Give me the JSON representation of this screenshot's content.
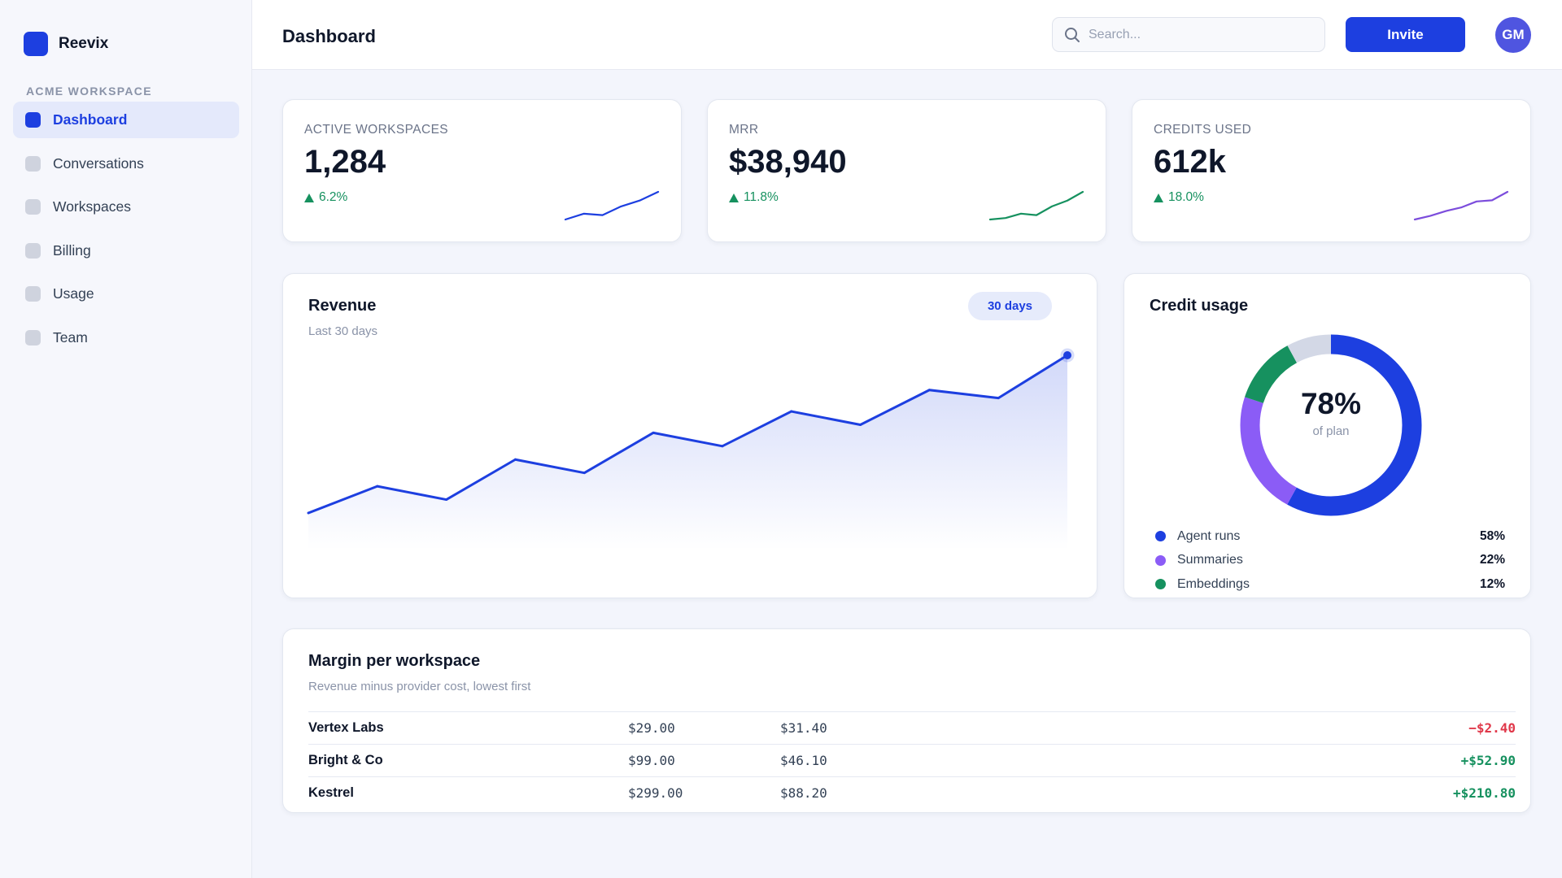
{
  "app": {
    "name": "Reevix"
  },
  "sidebar": {
    "workspace_label": "ACME WORKSPACE",
    "items": [
      {
        "label": "Dashboard",
        "active": true
      },
      {
        "label": "Conversations",
        "active": false
      },
      {
        "label": "Workspaces",
        "active": false
      },
      {
        "label": "Billing",
        "active": false
      },
      {
        "label": "Usage",
        "active": false
      },
      {
        "label": "Team",
        "active": false
      }
    ]
  },
  "header": {
    "title": "Dashboard",
    "search_placeholder": "Search...",
    "invite_label": "Invite",
    "avatar_initials": "GM"
  },
  "kpis": [
    {
      "label": "ACTIVE WORKSPACES",
      "value": "1,284",
      "delta": "6.2%",
      "color": "#1d3fe0",
      "spark": [
        10,
        14,
        13,
        19,
        23,
        29
      ]
    },
    {
      "label": "MRR",
      "value": "$38,940",
      "delta": "11.8%",
      "color": "#16915f",
      "spark": [
        12,
        13,
        16,
        15,
        21,
        25,
        31
      ]
    },
    {
      "label": "CREDITS USED",
      "value": "612k",
      "delta": "18.0%",
      "color": "#7c4ddc",
      "spark": [
        8,
        11,
        15,
        18,
        23,
        24,
        31
      ]
    }
  ],
  "revenue": {
    "title": "Revenue",
    "subtitle": "Last 30 days",
    "range_label": "30 days",
    "line_color": "#1d3fe0"
  },
  "chart_data": {
    "type": "area",
    "title": "Revenue",
    "subtitle": "Last 30 days",
    "xlabel": "",
    "ylabel": "",
    "grid": false,
    "values": [
      15,
      25,
      20,
      35,
      30,
      45,
      40,
      53,
      48,
      61,
      58,
      74
    ]
  },
  "credit_usage": {
    "title": "Credit usage",
    "center_value": "78%",
    "center_caption": "of plan",
    "segments": [
      {
        "label": "Agent runs",
        "pct": "58%",
        "value": 58,
        "color": "#1d3fe0"
      },
      {
        "label": "Summaries",
        "pct": "22%",
        "value": 22,
        "color": "#8b5cf6"
      },
      {
        "label": "Embeddings",
        "pct": "12%",
        "value": 12,
        "color": "#16915f"
      }
    ],
    "remainder_color": "#d3d8e6"
  },
  "margin": {
    "title": "Margin per workspace",
    "subtitle": "Revenue minus provider cost, lowest first",
    "rows": [
      {
        "name": "Vertex Labs",
        "revenue": "$29.00",
        "cost": "$31.40",
        "margin": "−$2.40",
        "color": "#e0384a"
      },
      {
        "name": "Bright & Co",
        "revenue": "$99.00",
        "cost": "$46.10",
        "margin": "+$52.90",
        "color": "#16915f"
      },
      {
        "name": "Kestrel",
        "revenue": "$299.00",
        "cost": "$88.20",
        "margin": "+$210.80",
        "color": "#16915f"
      }
    ]
  }
}
